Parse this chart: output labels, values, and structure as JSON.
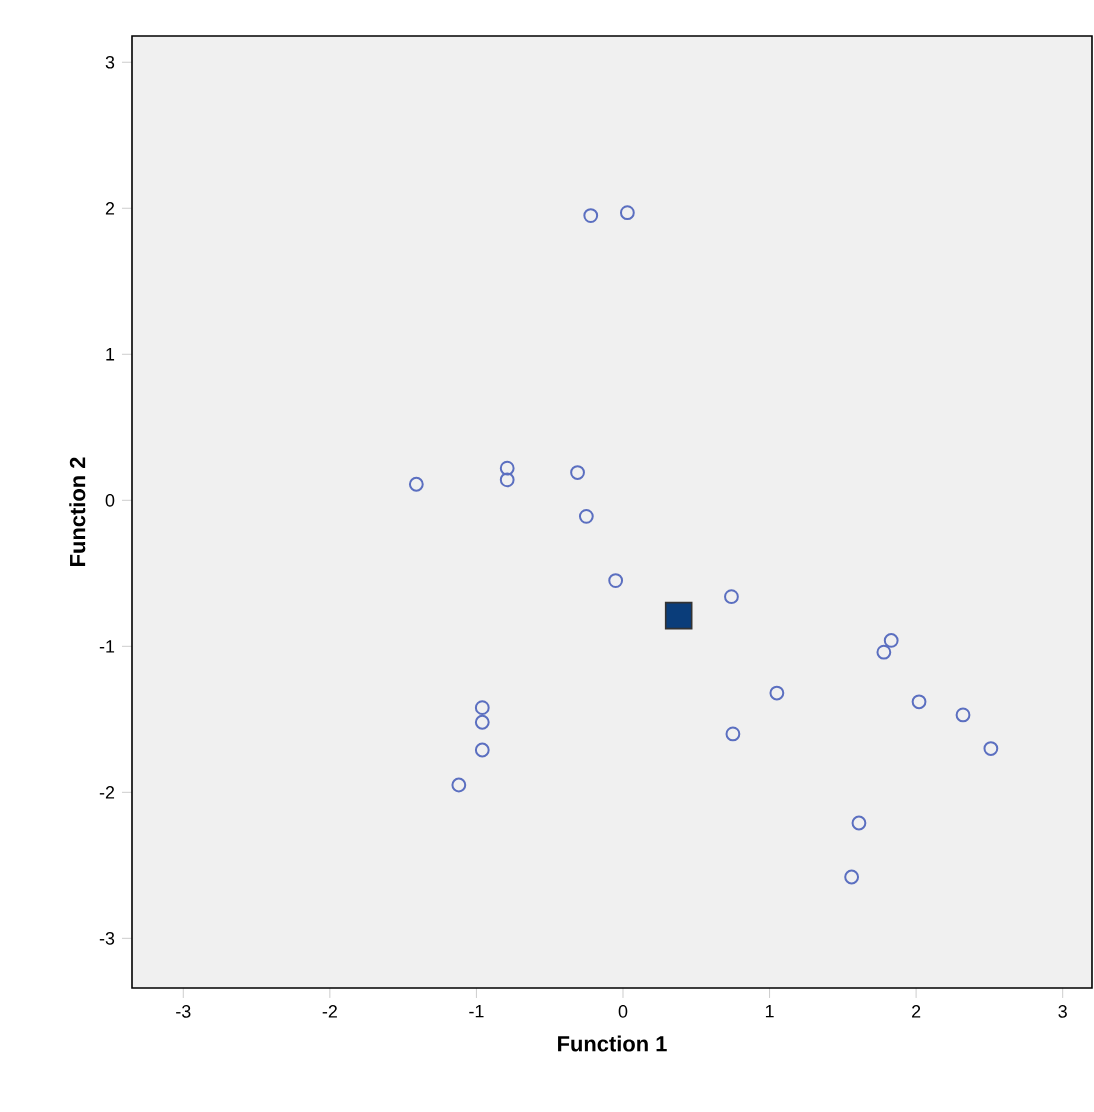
{
  "chart_data": {
    "type": "scatter",
    "xlabel": "Function 1",
    "ylabel": "Function 2",
    "xlim": [
      -3.35,
      3.2
    ],
    "ylim": [
      -3.34,
      3.18
    ],
    "xticks": [
      -3,
      -2,
      -1,
      0,
      1,
      2,
      3
    ],
    "yticks": [
      -3,
      -2,
      -1,
      0,
      1,
      2,
      3
    ],
    "grid": false,
    "series": [
      {
        "color": "#5b6fc0",
        "marker": "circle",
        "x": [
          -0.22,
          0.03,
          -1.41,
          -0.79,
          -0.79,
          -0.31,
          -0.25,
          -0.05,
          0.74,
          1.05,
          0.75,
          -0.96,
          -0.96,
          -0.96,
          -1.12,
          1.83,
          1.78,
          2.02,
          2.32,
          2.51,
          1.61,
          1.56
        ],
        "values": [
          1.95,
          1.97,
          0.11,
          0.22,
          0.14,
          0.19,
          -0.11,
          -0.55,
          -0.66,
          -1.32,
          -1.6,
          -1.42,
          -1.52,
          -1.71,
          -1.95,
          -0.96,
          -1.04,
          -1.38,
          -1.47,
          -1.7,
          -2.21,
          -2.58
        ]
      },
      {
        "color": "#0a3d7a",
        "marker": "square",
        "x": [
          0.38
        ],
        "values": [
          -0.79
        ]
      }
    ]
  }
}
